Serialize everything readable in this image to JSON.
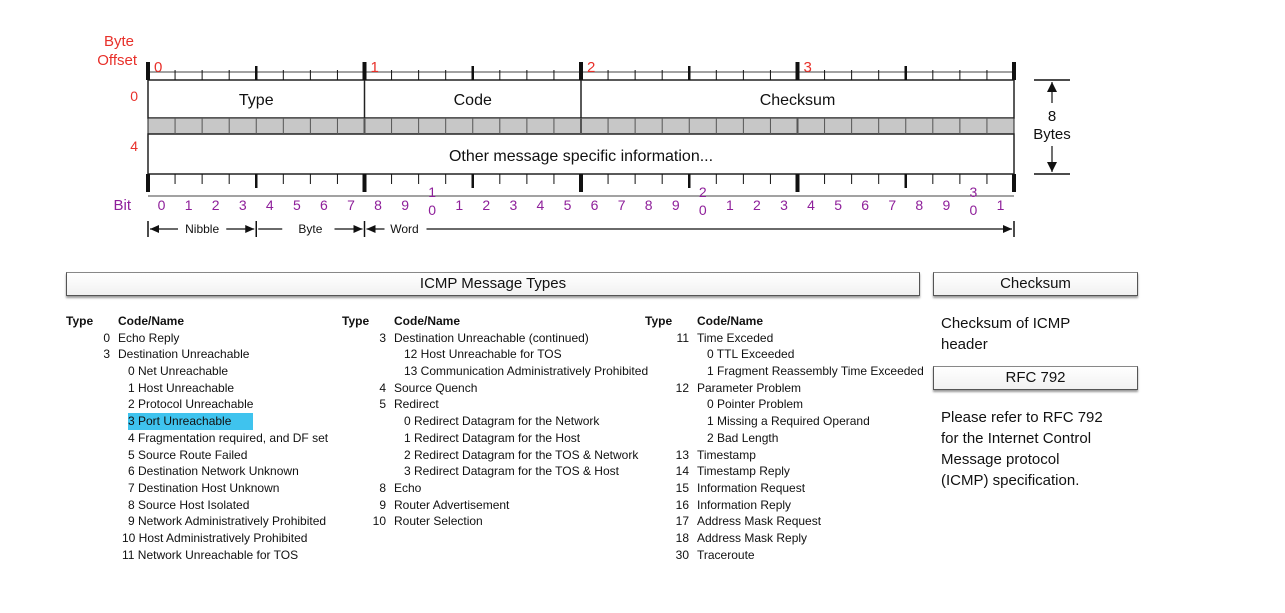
{
  "header": {
    "byte_offset_label": "Byte\nOffset",
    "byte_offset_line1": "Byte",
    "byte_offset_line2": "Offset",
    "byte_numbers": [
      "0",
      "1",
      "2",
      "3"
    ],
    "row_offsets": [
      "0",
      "4"
    ],
    "fields": {
      "type": "Type",
      "code": "Code",
      "checksum": "Checksum"
    },
    "other_info": "Other message specific information...",
    "size_label_num": "8",
    "size_label_unit": "Bytes",
    "bit_label": "Bit",
    "bit_numbers": [
      "0",
      "1",
      "2",
      "3",
      "4",
      "5",
      "6",
      "7",
      "8",
      "9",
      "1\n0",
      "1",
      "2",
      "3",
      "4",
      "5",
      "6",
      "7",
      "8",
      "9",
      "2\n0",
      "1",
      "2",
      "3",
      "4",
      "5",
      "6",
      "7",
      "8",
      "9",
      "3\n0",
      "1"
    ],
    "scale": {
      "nibble": "Nibble",
      "byte": "Byte",
      "word": "Word"
    }
  },
  "colors": {
    "offset": "#e8302a",
    "bit": "#8e1f9a",
    "highlight": "#3fc3ee"
  },
  "message_types": {
    "title": "ICMP Message Types",
    "col_header_type": "Type",
    "col_header_name": "Code/Name",
    "columns": [
      [
        {
          "t": "0",
          "n": "Echo Reply"
        },
        {
          "t": "3",
          "n": "Destination Unreachable"
        },
        {
          "t": "",
          "n": "0 Net Unreachable"
        },
        {
          "t": "",
          "n": "1 Host Unreachable"
        },
        {
          "t": "",
          "n": "2 Protocol Unreachable"
        },
        {
          "t": "",
          "n": "3 Port Unreachable",
          "hi": true
        },
        {
          "t": "",
          "n": "4 Fragmentation required, and DF set"
        },
        {
          "t": "",
          "n": "5 Source Route Failed"
        },
        {
          "t": "",
          "n": "6 Destination Network Unknown"
        },
        {
          "t": "",
          "n": "7 Destination Host Unknown"
        },
        {
          "t": "",
          "n": "8 Source Host Isolated"
        },
        {
          "t": "",
          "n": "9 Network Administratively Prohibited"
        },
        {
          "t": "",
          "n": "10 Host Administratively Prohibited",
          "shift": true
        },
        {
          "t": "",
          "n": "11 Network Unreachable for TOS",
          "shift": true
        }
      ],
      [
        {
          "t": "3",
          "n": "Destination Unreachable (continued)"
        },
        {
          "t": "",
          "n": "12 Host Unreachable for TOS"
        },
        {
          "t": "",
          "n": "13 Communication Administratively Prohibited"
        },
        {
          "t": "4",
          "n": "Source Quench"
        },
        {
          "t": "5",
          "n": "Redirect"
        },
        {
          "t": "",
          "n": "0 Redirect Datagram for the Network"
        },
        {
          "t": "",
          "n": "1 Redirect Datagram for the Host"
        },
        {
          "t": "",
          "n": "2 Redirect Datagram for the TOS & Network"
        },
        {
          "t": "",
          "n": "3 Redirect Datagram for the TOS & Host"
        },
        {
          "t": "8",
          "n": "Echo"
        },
        {
          "t": "9",
          "n": "Router Advertisement"
        },
        {
          "t": "10",
          "n": "Router Selection"
        }
      ],
      [
        {
          "t": "11",
          "n": "Time Exceded"
        },
        {
          "t": "",
          "n": "0 TTL Exceeded"
        },
        {
          "t": "",
          "n": "1 Fragment Reassembly Time Exceeded"
        },
        {
          "t": "12",
          "n": "Parameter Problem"
        },
        {
          "t": "",
          "n": "0 Pointer Problem"
        },
        {
          "t": "",
          "n": "1 Missing a Required Operand"
        },
        {
          "t": "",
          "n": "2 Bad Length"
        },
        {
          "t": "13",
          "n": "Timestamp"
        },
        {
          "t": "14",
          "n": "Timestamp Reply"
        },
        {
          "t": "15",
          "n": "Information Request"
        },
        {
          "t": "16",
          "n": "Information Reply"
        },
        {
          "t": "17",
          "n": "Address Mask Request"
        },
        {
          "t": "18",
          "n": "Address Mask Reply"
        },
        {
          "t": "30",
          "n": "Traceroute"
        }
      ]
    ]
  },
  "checksum_box": {
    "title": "Checksum",
    "text": "Checksum of ICMP header"
  },
  "rfc_box": {
    "title": "RFC 792",
    "text": "Please refer to RFC 792 for the Internet Control Message protocol (ICMP) specification."
  }
}
